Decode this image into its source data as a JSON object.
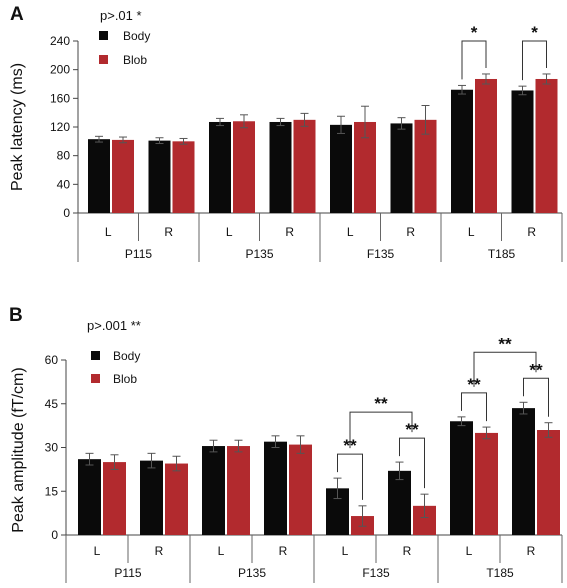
{
  "chart_data": [
    {
      "panel": "A",
      "type": "bar",
      "ylabel": "Peak latency (ms)",
      "annotation": "p>.01 *",
      "ylim": [
        0,
        240
      ],
      "yticks": [
        0,
        40,
        80,
        120,
        160,
        200,
        240
      ],
      "groups": [
        "P115",
        "P135",
        "F135",
        "T185"
      ],
      "subcategories": [
        "L",
        "R"
      ],
      "legend": [
        "Body",
        "Blob"
      ],
      "colors": {
        "Body": "#0a0a0a",
        "Blob": "#b22a2e"
      },
      "series": [
        {
          "name": "Body",
          "values": [
            103,
            101,
            127,
            127,
            123,
            125,
            172,
            171
          ],
          "errors": [
            4,
            4,
            5,
            5,
            12,
            8,
            6,
            6
          ]
        },
        {
          "name": "Blob",
          "values": [
            102,
            100,
            128,
            130,
            127,
            130,
            187,
            187
          ],
          "errors": [
            4,
            4,
            9,
            9,
            22,
            20,
            7,
            7
          ]
        }
      ],
      "significance": [
        {
          "group": 3,
          "sub": 0,
          "label": "*"
        },
        {
          "group": 3,
          "sub": 1,
          "label": "*"
        }
      ]
    },
    {
      "panel": "B",
      "type": "bar",
      "ylabel": "Peak amplitude (fT/cm)",
      "annotation": "p>.001 **",
      "ylim": [
        0,
        60
      ],
      "yticks": [
        0,
        15,
        30,
        45,
        60
      ],
      "groups": [
        "P115",
        "P135",
        "F135",
        "T185"
      ],
      "subcategories": [
        "L",
        "R"
      ],
      "legend": [
        "Body",
        "Blob"
      ],
      "colors": {
        "Body": "#0a0a0a",
        "Blob": "#b22a2e"
      },
      "series": [
        {
          "name": "Body",
          "values": [
            26,
            25.5,
            30.5,
            32,
            16,
            22,
            39,
            43.5
          ],
          "errors": [
            2,
            2.5,
            2,
            2,
            3.5,
            3,
            1.5,
            2
          ]
        },
        {
          "name": "Blob",
          "values": [
            25,
            24.5,
            30.5,
            31,
            6.5,
            10,
            35,
            36
          ],
          "errors": [
            2.5,
            2.5,
            2,
            3,
            3.5,
            4,
            2,
            2.5
          ]
        }
      ],
      "significance": [
        {
          "label": "**",
          "kind": "pair",
          "index": 4
        },
        {
          "label": "**",
          "kind": "pair",
          "index": 5
        },
        {
          "label": "**",
          "kind": "cross",
          "from": 4,
          "to": 5
        },
        {
          "label": "**",
          "kind": "pair",
          "index": 6
        },
        {
          "label": "**",
          "kind": "pair",
          "index": 7
        },
        {
          "label": "**",
          "kind": "cross",
          "from": 6,
          "to": 7
        }
      ]
    }
  ]
}
